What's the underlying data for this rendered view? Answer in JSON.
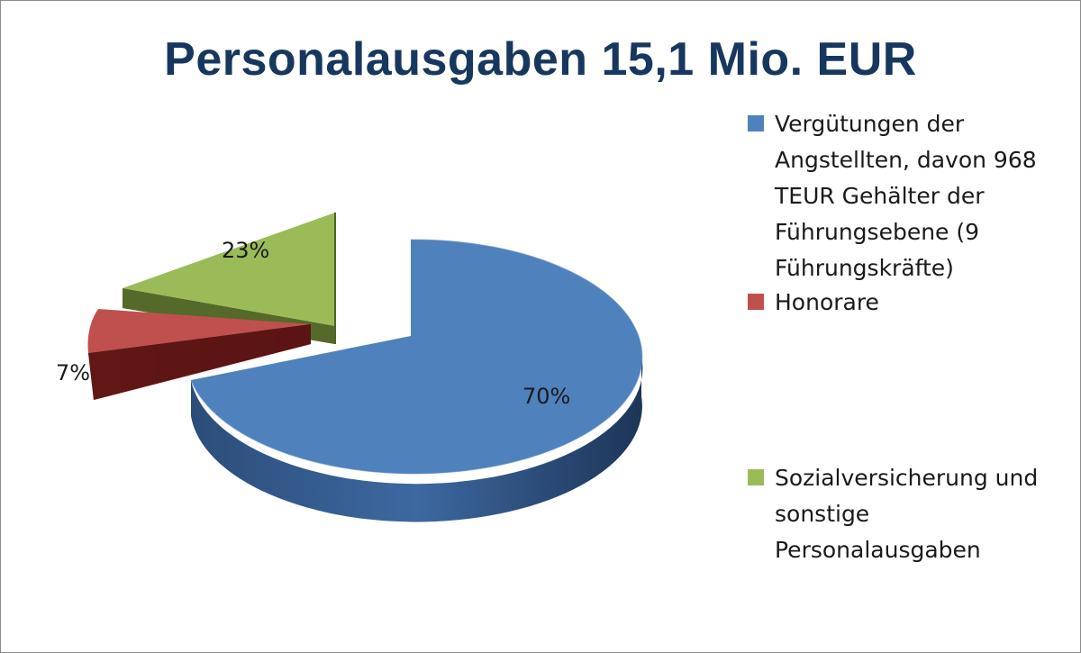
{
  "chart_data": {
    "type": "pie",
    "title": "Personalausgaben 15,1 Mio. EUR",
    "three_d": true,
    "exploded": true,
    "legend_position": "right",
    "slices": [
      {
        "label": "Vergütungen der Angstellten, davon 968 TEUR Gehälter der Führungsebene (9 Führungskräfte)",
        "value": 70,
        "value_label": "70%",
        "color": "#4f81bd"
      },
      {
        "label": "Honorare",
        "value": 7,
        "value_label": "7%",
        "color": "#c0504d"
      },
      {
        "label": "Sozialversicherung und sonstige Personalausgaben",
        "value": 23,
        "value_label": "23%",
        "color": "#9bbb59"
      }
    ]
  }
}
